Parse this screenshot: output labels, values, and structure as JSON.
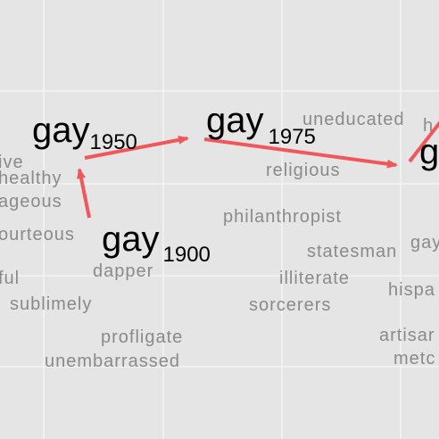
{
  "focus_words": [
    {
      "id": "gay-1900",
      "word": "gay",
      "year": "1900"
    },
    {
      "id": "gay-1950",
      "word": "gay",
      "year": "1950"
    },
    {
      "id": "gay-1975",
      "word": "gay",
      "year": "1975"
    },
    {
      "id": "gay-cut",
      "word": "g",
      "year": ""
    }
  ],
  "neighbors": [
    "ive",
    "healthy",
    "ageous",
    "ourteous",
    "ful",
    "sublimely",
    "dapper",
    "profligate",
    "unembarrassed",
    "uneducated",
    "h",
    "religious",
    "philanthropist",
    "statesman",
    "illiterate",
    "sorcerers",
    "gay",
    "hispa",
    "artisar",
    "metc"
  ],
  "colors": {
    "arrow": "#f0565a",
    "background": "#e5e5e5",
    "gridline": "#f7f7f7",
    "neighbor_text": "#8a8a8a"
  }
}
